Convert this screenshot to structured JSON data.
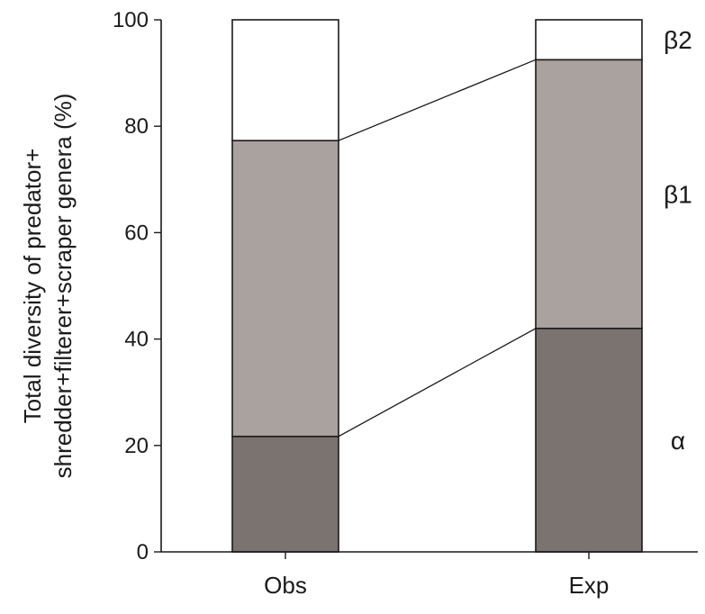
{
  "chart_data": {
    "type": "bar",
    "stacked": true,
    "categories": [
      "Obs",
      "Exp"
    ],
    "series": [
      {
        "name": "α",
        "values": [
          21.7,
          42.0
        ],
        "color": "#7b7370"
      },
      {
        "name": "β1",
        "values": [
          55.6,
          50.5
        ],
        "color": "#aaa29e"
      },
      {
        "name": "β2",
        "values": [
          22.7,
          7.5
        ],
        "color": "#ffffff"
      }
    ],
    "ylabel_lines": [
      "Total diversity of predator+",
      "shredder+filterer+scraper genera (%)"
    ],
    "ylim": [
      0,
      100
    ],
    "yticks": [
      0,
      20,
      40,
      60,
      80,
      100
    ],
    "ytick_labels": [
      "0",
      "20",
      "40",
      "60",
      "80",
      "100"
    ],
    "connectors_between_bars": true,
    "segment_labels_side": "right",
    "grid": false,
    "legend": "none"
  }
}
